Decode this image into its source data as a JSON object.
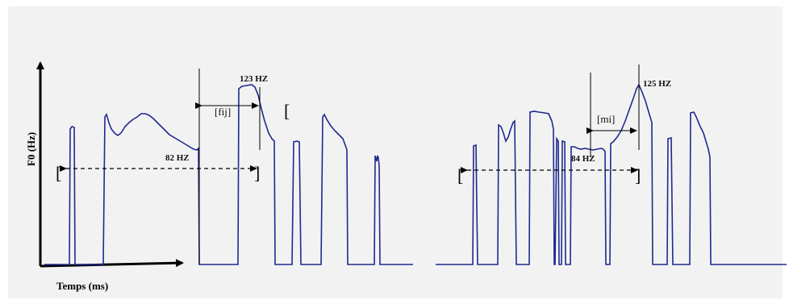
{
  "figure": {
    "y_axis_label": "F0 (Hz)",
    "x_axis_label": "Temps (ms)",
    "colors": {
      "background": "#f2f2f2",
      "contour": "#1f2a8f",
      "lines": "#000000"
    }
  },
  "left_panel": {
    "segment_label": "[fij]",
    "low_label": "82 HZ",
    "high_label": "123 HZ",
    "bracket_open": "[",
    "bracket_close": "]",
    "extra_bracket": "["
  },
  "right_panel": {
    "segment_label": "[mi]",
    "low_label": "84 HZ",
    "high_label": "125 HZ",
    "bracket_open": "[",
    "bracket_close": "]"
  }
}
